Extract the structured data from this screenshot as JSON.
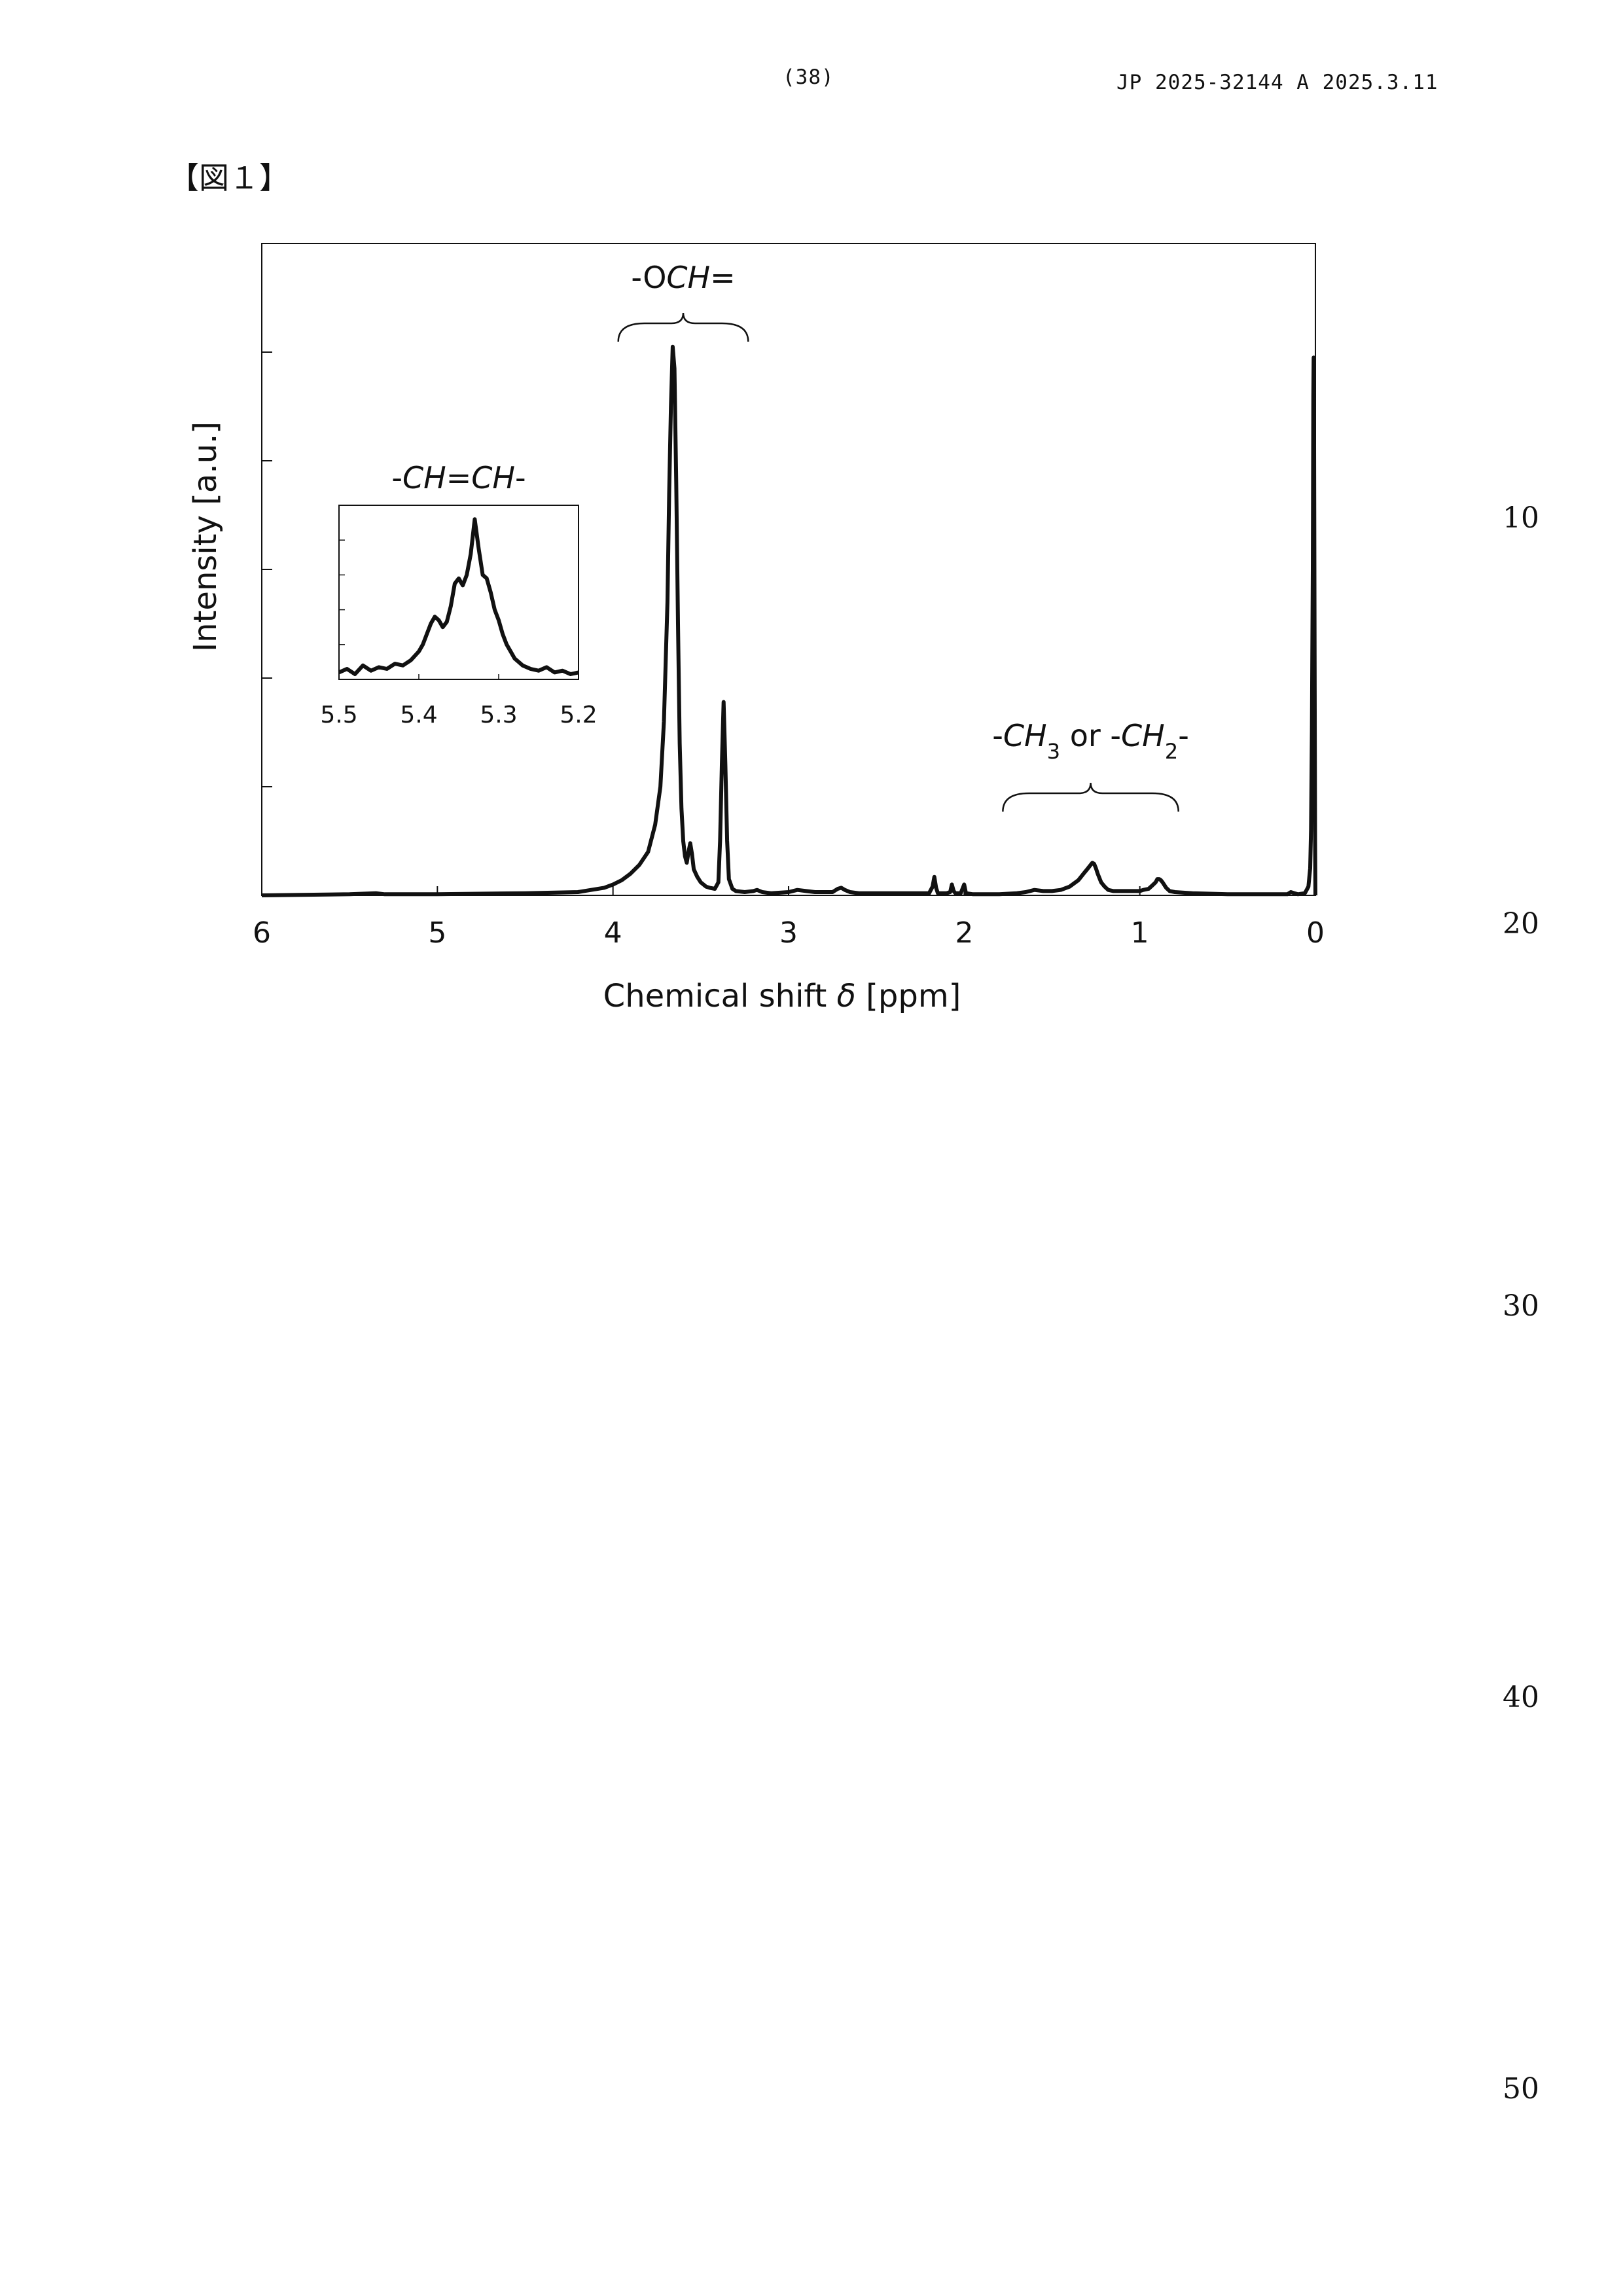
{
  "header": {
    "page_number": "(38)",
    "publication": "JP  2025-32144  A  2025.3.11"
  },
  "figure_label": "【図１】",
  "line_numbers": [
    "10",
    "20",
    "30",
    "40",
    "50"
  ],
  "chart_data": [
    {
      "type": "line",
      "title": "",
      "xlabel": "Chemical shift δ [ppm]",
      "xlabel_parts": [
        "Chemical shift ",
        "δ",
        " [ppm]"
      ],
      "ylabel": "Intensity [a.u.]",
      "xlim": [
        6,
        0
      ],
      "ylim": [
        0,
        6
      ],
      "x_reversed": true,
      "xticks": [
        6,
        5,
        4,
        3,
        2,
        1,
        0
      ],
      "xtick_labels": [
        "6",
        "5",
        "4",
        "3",
        "2",
        "1",
        "0"
      ],
      "yticks": [
        1,
        2,
        3,
        4,
        5
      ],
      "ytick_labels_shown": false,
      "grid": false,
      "series": [
        {
          "x": [
            6.0,
            5.5,
            5.35,
            5.3,
            5.0,
            4.5,
            4.2,
            4.05,
            4.0,
            3.95,
            3.9,
            3.85,
            3.8,
            3.76,
            3.73,
            3.71,
            3.69,
            3.68,
            3.67,
            3.66,
            3.65,
            3.64,
            3.63,
            3.62,
            3.61,
            3.6,
            3.59,
            3.58,
            3.57,
            3.56,
            3.55,
            3.54,
            3.52,
            3.5,
            3.47,
            3.45,
            3.42,
            3.4,
            3.39,
            3.38,
            3.37,
            3.36,
            3.35,
            3.34,
            3.32,
            3.3,
            3.25,
            3.2,
            3.18,
            3.15,
            3.1,
            3.0,
            2.95,
            2.9,
            2.85,
            2.8,
            2.75,
            2.72,
            2.7,
            2.68,
            2.65,
            2.6,
            2.5,
            2.4,
            2.3,
            2.2,
            2.18,
            2.17,
            2.16,
            2.15,
            2.1,
            2.08,
            2.07,
            2.06,
            2.05,
            2.02,
            2.01,
            2.0,
            1.99,
            1.95,
            1.9,
            1.8,
            1.7,
            1.65,
            1.6,
            1.55,
            1.5,
            1.45,
            1.4,
            1.35,
            1.32,
            1.3,
            1.28,
            1.27,
            1.26,
            1.25,
            1.24,
            1.22,
            1.2,
            1.18,
            1.15,
            1.12,
            1.1,
            1.05,
            1.0,
            0.98,
            0.95,
            0.93,
            0.91,
            0.9,
            0.89,
            0.88,
            0.87,
            0.85,
            0.83,
            0.8,
            0.7,
            0.5,
            0.3,
            0.16,
            0.14,
            0.12,
            0.1,
            0.06,
            0.04,
            0.03,
            0.025,
            0.02,
            0.015,
            0.012,
            0.01,
            0.008,
            0.005,
            0.002,
            0.0
          ],
          "y": [
            0.0,
            0.01,
            0.02,
            0.01,
            0.01,
            0.02,
            0.03,
            0.07,
            0.1,
            0.14,
            0.2,
            0.28,
            0.4,
            0.65,
            1.0,
            1.6,
            2.7,
            3.7,
            4.5,
            5.05,
            4.85,
            3.8,
            2.5,
            1.4,
            0.8,
            0.5,
            0.36,
            0.3,
            0.4,
            0.48,
            0.38,
            0.24,
            0.17,
            0.12,
            0.08,
            0.07,
            0.06,
            0.12,
            0.5,
            1.2,
            1.78,
            1.2,
            0.5,
            0.15,
            0.06,
            0.04,
            0.03,
            0.04,
            0.05,
            0.03,
            0.02,
            0.03,
            0.05,
            0.04,
            0.03,
            0.03,
            0.03,
            0.06,
            0.07,
            0.05,
            0.03,
            0.02,
            0.02,
            0.02,
            0.02,
            0.02,
            0.08,
            0.17,
            0.07,
            0.02,
            0.02,
            0.03,
            0.1,
            0.04,
            0.02,
            0.02,
            0.06,
            0.1,
            0.02,
            0.01,
            0.01,
            0.01,
            0.02,
            0.03,
            0.05,
            0.04,
            0.04,
            0.05,
            0.08,
            0.14,
            0.2,
            0.24,
            0.28,
            0.3,
            0.29,
            0.25,
            0.2,
            0.12,
            0.08,
            0.05,
            0.04,
            0.04,
            0.04,
            0.04,
            0.04,
            0.05,
            0.06,
            0.09,
            0.12,
            0.15,
            0.15,
            0.14,
            0.12,
            0.07,
            0.04,
            0.03,
            0.02,
            0.01,
            0.01,
            0.01,
            0.03,
            0.02,
            0.01,
            0.02,
            0.08,
            0.25,
            0.6,
            1.5,
            3.0,
            4.6,
            4.95,
            4.4,
            2.4,
            0.5,
            0.0
          ]
        }
      ],
      "annotations": [
        {
          "text": "-OCH=",
          "parts": [
            "-O",
            "C",
            "H",
            "="
          ],
          "italic": [
            "C",
            "H"
          ],
          "span": [
            3.97,
            3.23
          ]
        },
        {
          "text": "-CH3 or -CH2-",
          "parts": [
            "-",
            "CH",
            "3",
            " or -",
            "CH",
            "2",
            "-"
          ],
          "italic": [
            "CH"
          ],
          "subscript": [
            "3",
            "2"
          ],
          "span": [
            1.78,
            0.78
          ]
        }
      ]
    },
    {
      "type": "line",
      "inset": true,
      "title": "-CH=CH-",
      "title_parts": [
        "-",
        "CH",
        "=",
        "CH",
        "-"
      ],
      "italic": [
        "CH"
      ],
      "xlim": [
        5.5,
        5.2
      ],
      "ylim": [
        0,
        1
      ],
      "x_reversed": true,
      "xticks": [
        5.5,
        5.4,
        5.3,
        5.2
      ],
      "xtick_labels": [
        "5.5",
        "5.4",
        "5.3",
        "5.2"
      ],
      "yticks": [
        0.2,
        0.4,
        0.6,
        0.8
      ],
      "ytick_labels_shown": false,
      "grid": false,
      "series": [
        {
          "x": [
            5.5,
            5.49,
            5.48,
            5.47,
            5.46,
            5.45,
            5.44,
            5.43,
            5.42,
            5.41,
            5.4,
            5.395,
            5.39,
            5.385,
            5.38,
            5.375,
            5.37,
            5.365,
            5.36,
            5.355,
            5.35,
            5.345,
            5.34,
            5.335,
            5.33,
            5.325,
            5.32,
            5.315,
            5.31,
            5.305,
            5.3,
            5.295,
            5.29,
            5.285,
            5.28,
            5.275,
            5.27,
            5.26,
            5.25,
            5.24,
            5.23,
            5.22,
            5.21,
            5.2
          ],
          "y": [
            0.04,
            0.06,
            0.03,
            0.08,
            0.05,
            0.07,
            0.06,
            0.09,
            0.08,
            0.11,
            0.16,
            0.2,
            0.26,
            0.32,
            0.36,
            0.34,
            0.3,
            0.33,
            0.42,
            0.55,
            0.58,
            0.54,
            0.6,
            0.72,
            0.92,
            0.75,
            0.6,
            0.58,
            0.5,
            0.4,
            0.34,
            0.26,
            0.2,
            0.16,
            0.12,
            0.1,
            0.08,
            0.06,
            0.05,
            0.07,
            0.04,
            0.05,
            0.03,
            0.04
          ]
        }
      ]
    }
  ]
}
